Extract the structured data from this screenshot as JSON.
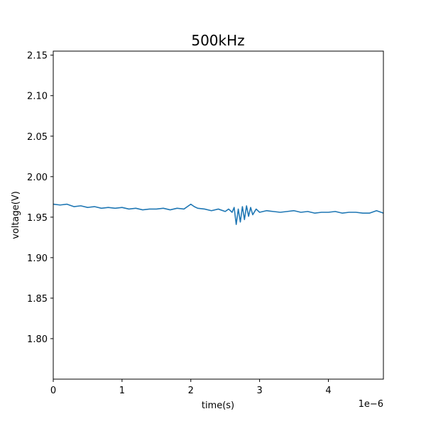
{
  "chart_data": {
    "type": "line",
    "title": "500kHz",
    "xlabel": "time(s)",
    "ylabel": "voltage(V)",
    "x_offset_label": "1e−6",
    "xlim": [
      0,
      4.8e-06
    ],
    "ylim": [
      1.75,
      2.155
    ],
    "x_ticks": [
      0,
      1e-06,
      2e-06,
      3e-06,
      4e-06
    ],
    "x_tick_labels": [
      "0",
      "1",
      "2",
      "3",
      "4"
    ],
    "y_ticks": [
      1.8,
      1.85,
      1.9,
      1.95,
      2.0,
      2.05,
      2.1,
      2.15
    ],
    "y_tick_labels": [
      "1.80",
      "1.85",
      "1.90",
      "1.95",
      "2.00",
      "2.05",
      "2.10",
      "2.15"
    ],
    "grid": false,
    "series": [
      {
        "color": "#1f77b4",
        "x": [
          0,
          1e-07,
          2e-07,
          3e-07,
          4e-07,
          5e-07,
          6e-07,
          7e-07,
          8e-07,
          9e-07,
          1e-06,
          1.1e-06,
          1.2e-06,
          1.3e-06,
          1.4e-06,
          1.5e-06,
          1.6e-06,
          1.7e-06,
          1.8e-06,
          1.9e-06,
          2e-06,
          2.05e-06,
          2.1e-06,
          2.2e-06,
          2.3e-06,
          2.4e-06,
          2.5e-06,
          2.55e-06,
          2.6e-06,
          2.63e-06,
          2.66e-06,
          2.69e-06,
          2.72e-06,
          2.75e-06,
          2.78e-06,
          2.81e-06,
          2.84e-06,
          2.87e-06,
          2.9e-06,
          2.95e-06,
          3e-06,
          3.1e-06,
          3.2e-06,
          3.3e-06,
          3.4e-06,
          3.5e-06,
          3.6e-06,
          3.7e-06,
          3.8e-06,
          3.9e-06,
          4e-06,
          4.1e-06,
          4.2e-06,
          4.3e-06,
          4.4e-06,
          4.5e-06,
          4.6e-06,
          4.7e-06,
          4.8e-06
        ],
        "y": [
          1.966,
          1.965,
          1.966,
          1.963,
          1.964,
          1.962,
          1.963,
          1.961,
          1.962,
          1.961,
          1.962,
          1.96,
          1.961,
          1.959,
          1.96,
          1.96,
          1.961,
          1.959,
          1.961,
          1.96,
          1.966,
          1.963,
          1.961,
          1.96,
          1.958,
          1.96,
          1.957,
          1.96,
          1.956,
          1.962,
          1.941,
          1.96,
          1.944,
          1.963,
          1.947,
          1.964,
          1.951,
          1.962,
          1.953,
          1.96,
          1.956,
          1.958,
          1.957,
          1.956,
          1.957,
          1.958,
          1.956,
          1.957,
          1.955,
          1.956,
          1.956,
          1.957,
          1.955,
          1.956,
          1.956,
          1.955,
          1.955,
          1.958,
          1.955
        ]
      }
    ]
  }
}
